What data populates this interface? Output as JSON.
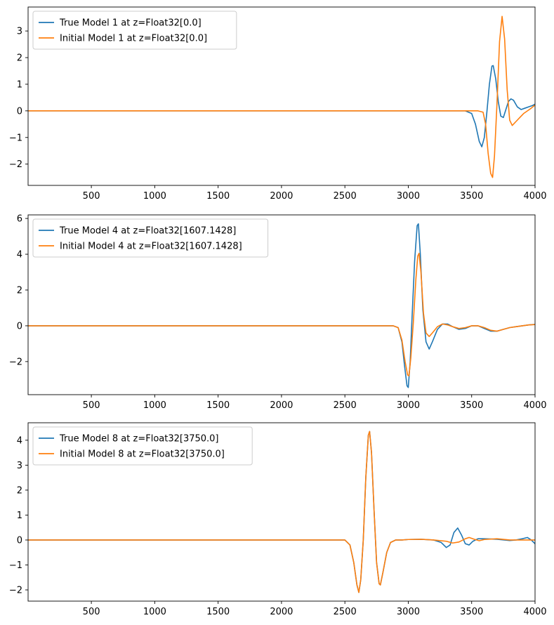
{
  "chart_data": [
    {
      "type": "line",
      "title": "",
      "xlabel": "",
      "ylabel": "",
      "xlim": [
        1,
        4000
      ],
      "ylim": [
        -2.8,
        3.9
      ],
      "xticks": [
        500,
        1000,
        1500,
        2000,
        2500,
        3000,
        3500,
        4000
      ],
      "yticks": [
        -2,
        -1,
        0,
        1,
        2,
        3
      ],
      "grid": false,
      "legend_position": "top-left",
      "series": [
        {
          "name": "True Model 1 at z=Float32[0.0]",
          "color": "#1f77b4",
          "x": [
            1,
            3450,
            3500,
            3530,
            3560,
            3580,
            3600,
            3620,
            3640,
            3660,
            3670,
            3690,
            3710,
            3730,
            3750,
            3770,
            3790,
            3810,
            3830,
            3860,
            3890,
            3920,
            3950,
            3980,
            4000
          ],
          "y": [
            0,
            0,
            -0.1,
            -0.5,
            -1.15,
            -1.35,
            -1.0,
            -0.05,
            1.0,
            1.68,
            1.7,
            1.2,
            0.35,
            -0.2,
            -0.25,
            0.05,
            0.35,
            0.45,
            0.4,
            0.15,
            0.05,
            0.1,
            0.15,
            0.2,
            0.25
          ]
        },
        {
          "name": "Initial Model 1 at z=Float32[0.0]",
          "color": "#ff7f0e",
          "x": [
            1,
            3550,
            3590,
            3610,
            3630,
            3650,
            3665,
            3680,
            3700,
            3720,
            3740,
            3760,
            3780,
            3800,
            3820,
            3850,
            3880,
            3910,
            3940,
            3970,
            3995,
            4000
          ],
          "y": [
            0,
            0,
            -0.05,
            -0.5,
            -1.6,
            -2.35,
            -2.5,
            -1.7,
            0.3,
            2.6,
            3.55,
            2.7,
            0.8,
            -0.35,
            -0.55,
            -0.4,
            -0.25,
            -0.1,
            0.0,
            0.1,
            0.2,
            0.22
          ]
        }
      ]
    },
    {
      "type": "line",
      "title": "",
      "xlabel": "",
      "ylabel": "",
      "xlim": [
        1,
        4000
      ],
      "ylim": [
        -3.85,
        6.2
      ],
      "xticks": [
        500,
        1000,
        1500,
        2000,
        2500,
        3000,
        3500,
        4000
      ],
      "yticks": [
        -2,
        0,
        2,
        4,
        6
      ],
      "grid": false,
      "legend_position": "top-left",
      "series": [
        {
          "name": "True Model 4 at z=Float32[1607.1428]",
          "color": "#1f77b4",
          "x": [
            1,
            2880,
            2920,
            2950,
            2970,
            2990,
            3000,
            3015,
            3030,
            3050,
            3070,
            3080,
            3095,
            3115,
            3140,
            3165,
            3190,
            3230,
            3270,
            3310,
            3350,
            3400,
            3450,
            3500,
            3550,
            3600,
            3650,
            3700,
            3750,
            3800,
            3850,
            3900,
            3950,
            4000
          ],
          "y": [
            0,
            0,
            -0.1,
            -0.9,
            -2.2,
            -3.35,
            -3.45,
            -2.0,
            0.5,
            3.6,
            5.6,
            5.7,
            4.0,
            0.9,
            -0.9,
            -1.3,
            -0.9,
            -0.2,
            0.1,
            0.1,
            -0.05,
            -0.2,
            -0.15,
            0.0,
            0.0,
            -0.15,
            -0.3,
            -0.3,
            -0.2,
            -0.1,
            -0.05,
            0.0,
            0.05,
            0.08
          ]
        },
        {
          "name": "Initial Model 4 at z=Float32[1607.1428]",
          "color": "#ff7f0e",
          "x": [
            1,
            2880,
            2920,
            2950,
            2975,
            2995,
            3005,
            3020,
            3040,
            3060,
            3075,
            3085,
            3100,
            3120,
            3140,
            3165,
            3190,
            3230,
            3270,
            3310,
            3350,
            3400,
            3450,
            3500,
            3550,
            3600,
            3650,
            3700,
            3750,
            3800,
            3850,
            3900,
            3950,
            4000
          ],
          "y": [
            0,
            0,
            -0.1,
            -0.8,
            -2.0,
            -2.75,
            -2.8,
            -1.8,
            0.2,
            2.6,
            3.9,
            4.05,
            3.0,
            0.7,
            -0.4,
            -0.6,
            -0.4,
            -0.05,
            0.1,
            0.05,
            -0.05,
            -0.15,
            -0.1,
            0.0,
            0.0,
            -0.1,
            -0.25,
            -0.3,
            -0.2,
            -0.1,
            -0.05,
            0.0,
            0.05,
            0.07
          ]
        }
      ]
    },
    {
      "type": "line",
      "title": "",
      "xlabel": "",
      "ylabel": "",
      "xlim": [
        1,
        4000
      ],
      "ylim": [
        -2.45,
        4.7
      ],
      "xticks": [
        500,
        1000,
        1500,
        2000,
        2500,
        3000,
        3500,
        4000
      ],
      "yticks": [
        -2,
        -1,
        0,
        1,
        2,
        3,
        4
      ],
      "grid": false,
      "legend_position": "top-left",
      "series": [
        {
          "name": "True Model 8 at z=Float32[3750.0]",
          "color": "#1f77b4",
          "x": [
            1,
            2500,
            2540,
            2570,
            2595,
            2610,
            2625,
            2645,
            2665,
            2685,
            2695,
            2710,
            2730,
            2750,
            2770,
            2780,
            2800,
            2830,
            2860,
            2900,
            2950,
            3000,
            3100,
            3200,
            3260,
            3300,
            3330,
            3360,
            3390,
            3420,
            3450,
            3480,
            3510,
            3550,
            3600,
            3700,
            3800,
            3850,
            3900,
            3940,
            3970,
            4000
          ],
          "y": [
            0,
            0,
            -0.2,
            -0.9,
            -1.8,
            -2.1,
            -1.6,
            0.0,
            2.5,
            4.2,
            4.35,
            3.5,
            1.2,
            -0.9,
            -1.75,
            -1.8,
            -1.3,
            -0.5,
            -0.1,
            0.0,
            0.0,
            0.02,
            0.03,
            0.0,
            -0.1,
            -0.3,
            -0.2,
            0.3,
            0.48,
            0.2,
            -0.15,
            -0.2,
            -0.05,
            0.05,
            0.05,
            0.03,
            -0.02,
            0.0,
            0.05,
            0.1,
            0.0,
            -0.15
          ]
        },
        {
          "name": "Initial Model 8 at z=Float32[3750.0]",
          "color": "#ff7f0e",
          "x": [
            1,
            2500,
            2540,
            2570,
            2595,
            2610,
            2625,
            2645,
            2665,
            2685,
            2695,
            2710,
            2730,
            2750,
            2770,
            2780,
            2800,
            2830,
            2860,
            2900,
            2950,
            3000,
            3100,
            3200,
            3300,
            3350,
            3400,
            3450,
            3480,
            3520,
            3560,
            3600,
            3700,
            3800,
            3850,
            3900,
            3950,
            4000
          ],
          "y": [
            0,
            0,
            -0.2,
            -0.9,
            -1.8,
            -2.1,
            -1.6,
            0.0,
            2.5,
            4.2,
            4.35,
            3.5,
            1.2,
            -0.9,
            -1.75,
            -1.8,
            -1.3,
            -0.5,
            -0.1,
            0.0,
            0.0,
            0.02,
            0.03,
            0.0,
            -0.05,
            -0.12,
            -0.08,
            0.05,
            0.1,
            0.03,
            -0.03,
            0.02,
            0.05,
            0.0,
            0.0,
            0.0,
            0.0,
            0.0
          ]
        }
      ]
    }
  ]
}
